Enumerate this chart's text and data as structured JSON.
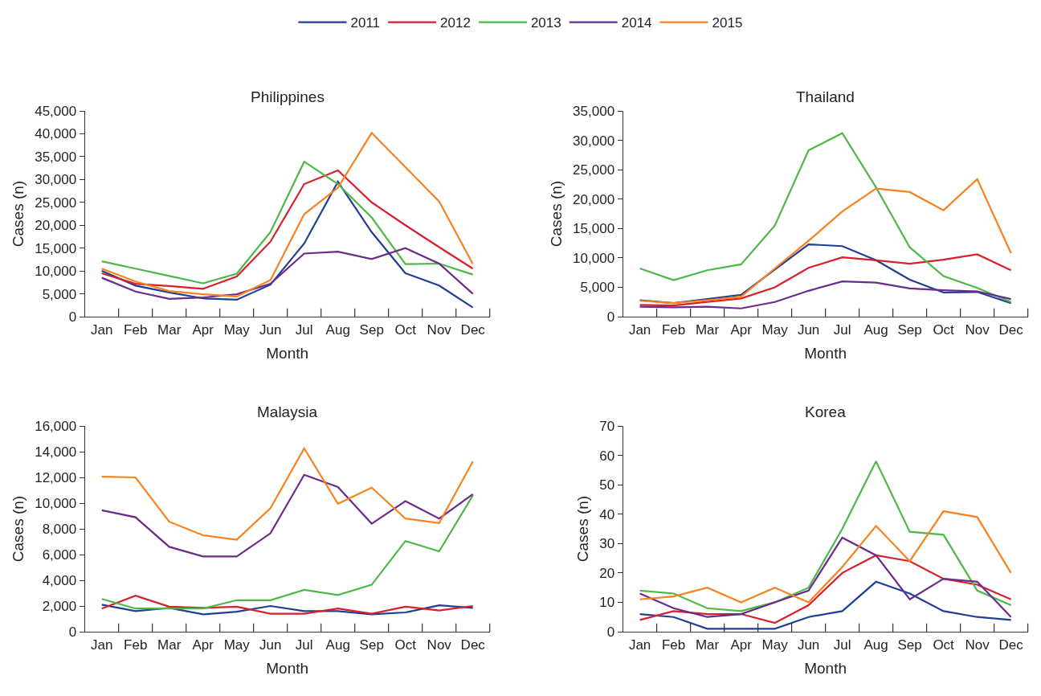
{
  "chart_data": [
    {
      "type": "line",
      "title": "Philippines",
      "xlabel": "Month",
      "ylabel": "Cases (n)",
      "categories": [
        "Jan",
        "Feb",
        "Mar",
        "Apr",
        "May",
        "Jun",
        "Jul",
        "Aug",
        "Sep",
        "Oct",
        "Nov",
        "Dec"
      ],
      "ylim": [
        0,
        45000
      ],
      "yticks": [
        {
          "value": 0,
          "label": "0"
        },
        {
          "value": 5000,
          "label": "5,000"
        },
        {
          "value": 10000,
          "label": "10,000"
        },
        {
          "value": 15000,
          "label": "15,000"
        },
        {
          "value": 20000,
          "label": "20,000"
        },
        {
          "value": 25000,
          "label": "25,000"
        },
        {
          "value": 30000,
          "label": "30,000"
        },
        {
          "value": 35000,
          "label": "35,000"
        },
        {
          "value": 40000,
          "label": "40,000"
        },
        {
          "value": 45000,
          "label": "45,000"
        }
      ],
      "legend": "top",
      "marker": "none",
      "line_style": "solid",
      "series": [
        {
          "name": "2011",
          "color": "#1f3f95",
          "values": [
            10000,
            6800,
            5300,
            4000,
            3700,
            7000,
            16000,
            29500,
            18500,
            9500,
            6800,
            2000
          ]
        },
        {
          "name": "2012",
          "color": "#d7202a",
          "values": [
            9500,
            7200,
            6700,
            6100,
            8800,
            16400,
            29000,
            32000,
            25000,
            20000,
            15200,
            10500
          ]
        },
        {
          "name": "2013",
          "color": "#4db848",
          "values": [
            12100,
            10500,
            8900,
            7300,
            9400,
            18500,
            33900,
            29000,
            21700,
            11500,
            11600,
            9200
          ]
        },
        {
          "name": "2014",
          "color": "#6a2c8c",
          "values": [
            8500,
            5500,
            3900,
            4200,
            4900,
            7200,
            13800,
            14200,
            12600,
            15000,
            11600,
            5000
          ]
        },
        {
          "name": "2015",
          "color": "#f7821f",
          "values": [
            10500,
            7700,
            5600,
            4900,
            4400,
            8000,
            22400,
            28200,
            40200,
            32700,
            25200,
            11500
          ]
        }
      ]
    },
    {
      "type": "line",
      "title": "Thailand",
      "xlabel": "Month",
      "ylabel": "Cases (n)",
      "categories": [
        "Jan",
        "Feb",
        "Mar",
        "Apr",
        "May",
        "Jun",
        "Jul",
        "Aug",
        "Sep",
        "Oct",
        "Nov",
        "Dec"
      ],
      "ylim": [
        0,
        35000
      ],
      "yticks": [
        {
          "value": 0,
          "label": "0"
        },
        {
          "value": 5000,
          "label": "5,000"
        },
        {
          "value": 10000,
          "label": "10,000"
        },
        {
          "value": 15000,
          "label": "15,000"
        },
        {
          "value": 20000,
          "label": "20,000"
        },
        {
          "value": 25000,
          "label": "25,000"
        },
        {
          "value": 30000,
          "label": "30,000"
        },
        {
          "value": 35000,
          "label": "35,000"
        }
      ],
      "legend": "top",
      "marker": "none",
      "line_style": "solid",
      "series": [
        {
          "name": "2011",
          "color": "#1f3f95",
          "values": [
            2800,
            2300,
            3000,
            3700,
            8000,
            12300,
            12000,
            9600,
            6300,
            4100,
            4200,
            2300
          ]
        },
        {
          "name": "2012",
          "color": "#d7202a",
          "values": [
            2000,
            1900,
            2500,
            3100,
            5000,
            8300,
            10100,
            9600,
            9000,
            9700,
            10600,
            7900
          ]
        },
        {
          "name": "2013",
          "color": "#4db848",
          "values": [
            8200,
            6200,
            7900,
            8900,
            15500,
            28300,
            31200,
            22000,
            11800,
            6900,
            4900,
            2500
          ]
        },
        {
          "name": "2014",
          "color": "#6a2c8c",
          "values": [
            1700,
            1600,
            1700,
            1400,
            2500,
            4400,
            6000,
            5800,
            4800,
            4500,
            4300,
            3000
          ]
        },
        {
          "name": "2015",
          "color": "#f7821f",
          "values": [
            2700,
            2300,
            2800,
            3400,
            8200,
            12900,
            17900,
            21800,
            21200,
            18100,
            23400,
            10800
          ]
        }
      ]
    },
    {
      "type": "line",
      "title": "Malaysia",
      "xlabel": "Month",
      "ylabel": "Cases (n)",
      "categories": [
        "Jan",
        "Feb",
        "Mar",
        "Apr",
        "May",
        "Jun",
        "Jul",
        "Aug",
        "Sep",
        "Oct",
        "Nov",
        "Dec"
      ],
      "ylim": [
        0,
        16000
      ],
      "yticks": [
        {
          "value": 0,
          "label": "0"
        },
        {
          "value": 2000,
          "label": "2,000"
        },
        {
          "value": 4000,
          "label": "4,000"
        },
        {
          "value": 6000,
          "label": "6,000"
        },
        {
          "value": 8000,
          "label": "8,000"
        },
        {
          "value": 10000,
          "label": "10,000"
        },
        {
          "value": 12000,
          "label": "12,000"
        },
        {
          "value": 14000,
          "label": "14,000"
        },
        {
          "value": 16000,
          "label": "16,000"
        }
      ],
      "legend": "top",
      "marker": "none",
      "line_style": "solid",
      "series": [
        {
          "name": "2011",
          "color": "#1f3f95",
          "values": [
            2100,
            1600,
            1850,
            1350,
            1550,
            2000,
            1600,
            1600,
            1350,
            1500,
            2050,
            1850
          ]
        },
        {
          "name": "2012",
          "color": "#d7202a",
          "values": [
            1800,
            2800,
            1950,
            1850,
            1950,
            1400,
            1400,
            1800,
            1400,
            1950,
            1650,
            2000
          ]
        },
        {
          "name": "2013",
          "color": "#4db848",
          "values": [
            2550,
            1800,
            1800,
            1800,
            2450,
            2450,
            3250,
            2850,
            3650,
            7050,
            6250,
            10600
          ]
        },
        {
          "name": "2014",
          "color": "#6a2c8c",
          "values": [
            9450,
            8900,
            6600,
            5850,
            5850,
            7650,
            12200,
            11250,
            8400,
            10150,
            8800,
            10700
          ]
        },
        {
          "name": "2015",
          "color": "#f7821f",
          "values": [
            12050,
            12000,
            8550,
            7500,
            7150,
            9600,
            14250,
            9950,
            11200,
            8800,
            8450,
            13250
          ]
        }
      ]
    },
    {
      "type": "line",
      "title": "Korea",
      "xlabel": "Month",
      "ylabel": "Cases (n)",
      "categories": [
        "Jan",
        "Feb",
        "Mar",
        "Apr",
        "May",
        "Jun",
        "Jul",
        "Aug",
        "Sep",
        "Oct",
        "Nov",
        "Dec"
      ],
      "ylim": [
        0,
        70
      ],
      "yticks": [
        0,
        10,
        20,
        30,
        40,
        50,
        60,
        70
      ],
      "legend": "top",
      "marker": "none",
      "line_style": "solid",
      "series": [
        {
          "name": "2011",
          "color": "#1f3f95",
          "values": [
            6,
            5,
            1,
            1,
            1,
            5,
            7,
            17,
            13,
            7,
            5,
            4
          ]
        },
        {
          "name": "2012",
          "color": "#d7202a",
          "values": [
            4,
            7,
            6,
            6,
            3,
            9,
            20,
            26,
            24,
            18,
            16,
            11
          ]
        },
        {
          "name": "2013",
          "color": "#4db848",
          "values": [
            14,
            13,
            8,
            7,
            10,
            15,
            35,
            58,
            34,
            33,
            14,
            9
          ]
        },
        {
          "name": "2014",
          "color": "#6a2c8c",
          "values": [
            13,
            8,
            5,
            6,
            10,
            14,
            32,
            26,
            11,
            18,
            17,
            5
          ]
        },
        {
          "name": "2015",
          "color": "#f7821f",
          "values": [
            11,
            12,
            15,
            10,
            15,
            10,
            22,
            36,
            24,
            41,
            39,
            20
          ]
        }
      ]
    }
  ]
}
